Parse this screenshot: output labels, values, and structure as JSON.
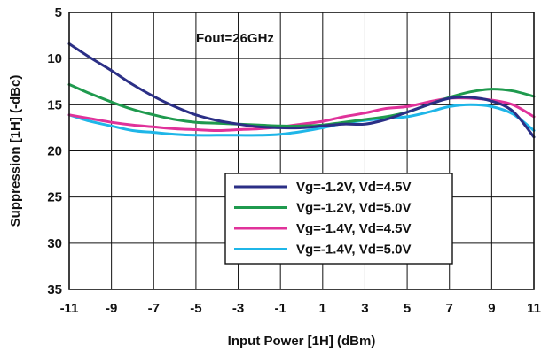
{
  "chart_data": {
    "type": "line",
    "title": "",
    "annotation": "Fout=26GHz",
    "xlabel": "Input Power [1H] (dBm)",
    "ylabel": "Suppression [1H] (-dBc)",
    "xlim": [
      -11,
      11
    ],
    "ylim": [
      5,
      35
    ],
    "y_inverted": true,
    "grid": true,
    "legend_position": "bottom-right",
    "x_ticks": [
      "-11",
      "-9",
      "-7",
      "-5",
      "-3",
      "-1",
      "1",
      "3",
      "5",
      "7",
      "9",
      "11"
    ],
    "y_ticks": [
      "5",
      "10",
      "15",
      "20",
      "25",
      "30",
      "35"
    ],
    "series": [
      {
        "name": "Vg=-1.2V, Vd=4.5V",
        "color": "#2b2f86",
        "x": [
          -11,
          -10,
          -9,
          -8,
          -7,
          -6,
          -5,
          -4,
          -3,
          -2,
          -1,
          0,
          1,
          2,
          3,
          4,
          5,
          6,
          7,
          8,
          9,
          10,
          11
        ],
        "y": [
          8.4,
          9.9,
          11.3,
          12.8,
          14.1,
          15.2,
          16.1,
          16.7,
          17.1,
          17.4,
          17.5,
          17.5,
          17.3,
          17.1,
          17.1,
          16.6,
          15.8,
          15.0,
          14.3,
          14.2,
          14.6,
          15.7,
          18.5
        ]
      },
      {
        "name": "Vg=-1.2V, Vd=5.0V",
        "color": "#1f9a4e",
        "x": [
          -11,
          -10,
          -9,
          -8,
          -7,
          -6,
          -5,
          -4,
          -3,
          -2,
          -1,
          0,
          1,
          2,
          3,
          4,
          5,
          6,
          7,
          8,
          9,
          10,
          11
        ],
        "y": [
          12.8,
          13.8,
          14.7,
          15.5,
          16.1,
          16.6,
          16.9,
          17.0,
          17.1,
          17.2,
          17.3,
          17.3,
          17.2,
          16.9,
          16.6,
          16.3,
          15.8,
          15.0,
          14.2,
          13.6,
          13.3,
          13.5,
          14.1
        ]
      },
      {
        "name": "Vg=-1.4V, Vd=4.5V",
        "color": "#e0329a",
        "x": [
          -11,
          -10,
          -9,
          -8,
          -7,
          -6,
          -5,
          -4,
          -3,
          -2,
          -1,
          0,
          1,
          2,
          3,
          4,
          5,
          6,
          7,
          8,
          9,
          10,
          11
        ],
        "y": [
          16.1,
          16.5,
          16.9,
          17.2,
          17.4,
          17.6,
          17.7,
          17.8,
          17.7,
          17.6,
          17.4,
          17.1,
          16.8,
          16.3,
          15.9,
          15.4,
          15.2,
          14.7,
          14.3,
          14.3,
          14.5,
          15.0,
          16.3
        ]
      },
      {
        "name": "Vg=-1.4V, Vd=5.0V",
        "color": "#1fb6e8",
        "x": [
          -11,
          -10,
          -9,
          -8,
          -7,
          -6,
          -5,
          -4,
          -3,
          -2,
          -1,
          0,
          1,
          2,
          3,
          4,
          5,
          6,
          7,
          8,
          9,
          10,
          11
        ],
        "y": [
          16.1,
          16.8,
          17.3,
          17.8,
          18.0,
          18.2,
          18.3,
          18.3,
          18.3,
          18.3,
          18.2,
          17.9,
          17.5,
          17.0,
          16.7,
          16.5,
          16.3,
          15.8,
          15.2,
          15.0,
          15.2,
          16.0,
          17.8
        ]
      }
    ]
  }
}
